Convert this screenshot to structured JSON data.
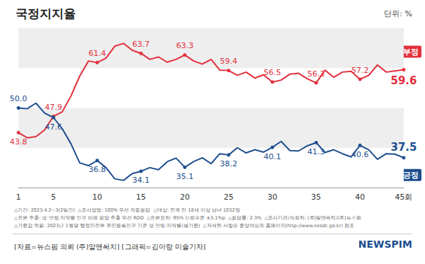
{
  "chart_data": {
    "type": "line",
    "title": "국정지지율",
    "subtitle": "단위: %",
    "categories": [
      "1",
      null,
      null,
      null,
      "5",
      null,
      null,
      null,
      null,
      "10",
      null,
      null,
      null,
      null,
      "15",
      null,
      null,
      null,
      null,
      "20",
      null,
      null,
      null,
      null,
      "25",
      null,
      null,
      null,
      null,
      "30",
      null,
      null,
      null,
      null,
      "35",
      null,
      null,
      null,
      null,
      "40",
      null,
      null,
      null,
      null,
      "45회"
    ],
    "series": [
      {
        "name": "부정",
        "color": "#e2303c",
        "values": [
          43.8,
          42.5,
          42.8,
          44.5,
          47.9,
          49.0,
          53.0,
          58.0,
          61.8,
          61.4,
          62.5,
          65.5,
          66.2,
          64.5,
          63.7,
          62.2,
          62.8,
          61.5,
          62.2,
          63.3,
          61.8,
          61.0,
          62.2,
          59.5,
          59.4,
          58.2,
          59.0,
          57.5,
          58.3,
          56.5,
          57.0,
          58.5,
          58.7,
          57.3,
          56.3,
          59.5,
          57.7,
          59.0,
          59.2,
          57.2,
          58.2,
          60.8,
          59.0,
          59.3,
          59.6
        ],
        "value_labels": [
          "43.8",
          null,
          null,
          null,
          "47.9",
          null,
          null,
          null,
          null,
          "61.4",
          null,
          null,
          null,
          null,
          "63.7",
          null,
          null,
          null,
          null,
          "63.3",
          null,
          null,
          null,
          null,
          "59.4",
          null,
          null,
          null,
          null,
          "56.5",
          null,
          null,
          null,
          null,
          "56.3",
          null,
          null,
          null,
          null,
          "57.2",
          null,
          null,
          null,
          null,
          "59.6"
        ]
      },
      {
        "name": "긍정",
        "color": "#1d4f8f",
        "values": [
          50.0,
          49.8,
          51.2,
          48.7,
          47.6,
          44.8,
          41.0,
          36.2,
          35.5,
          36.8,
          35.0,
          32.2,
          31.8,
          33.5,
          34.1,
          35.0,
          34.5,
          36.5,
          37.4,
          35.1,
          36.5,
          37.5,
          36.0,
          38.5,
          38.2,
          40.0,
          38.7,
          39.5,
          38.9,
          40.1,
          41.6,
          39.3,
          39.2,
          40.5,
          41.3,
          38.8,
          39.5,
          38.5,
          37.7,
          40.6,
          39.5,
          37.1,
          38.5,
          38.4,
          37.5
        ],
        "value_labels": [
          "50.0",
          null,
          null,
          null,
          "47.6",
          null,
          null,
          null,
          null,
          "36.8",
          null,
          null,
          null,
          null,
          "34.1",
          null,
          null,
          null,
          null,
          "35.1",
          null,
          null,
          null,
          null,
          "38.2",
          null,
          null,
          null,
          null,
          "40.1",
          null,
          null,
          null,
          null,
          "41.3",
          null,
          null,
          null,
          null,
          "40.6",
          null,
          null,
          null,
          null,
          "37.5"
        ]
      }
    ],
    "ylim": [
      30,
      70
    ],
    "yticks": [
      30,
      40,
      50,
      60,
      70
    ],
    "grid": true,
    "tick_labels": "x",
    "data_labels": true,
    "marker": "circle",
    "notes": [
      "△기간: 2023.4.2~3(2일간)  △조사방법: 100% 무선 자동응답  △대상: 전국 만 18세 이상 남녀 1032명",
      "△표본 추출: 성·연령·지역별 인구 비례 할당 추출 무선 RDD  △표본오차: 95% 신뢰수준 ±3.1%p  △응답률: 2.3%  △조사기관/의뢰처: (주)알앤써치/(주)뉴스핌",
      "△가중값 적용: 2023년 1월말 행정안전부 주민등록인구 기준 성·연령·지역별(셀가중)  △자세한 사항은 중앙여심위 홈페이지(http://www.nesdc.go.kr) 참조"
    ],
    "source": "[자료=뉴스핌 의뢰 (주)알앤써치] [그래픽=김아랑 미술기자]",
    "logo": "NEWSPIM"
  }
}
